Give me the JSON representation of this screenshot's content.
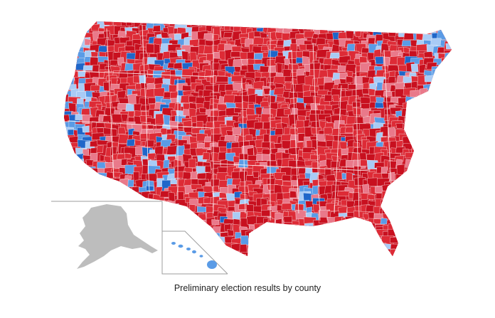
{
  "caption": "Preliminary election results by county",
  "legend_colors": {
    "republican_strong": "#c8101f",
    "republican": "#dd2b36",
    "republican_lean": "#e9798a",
    "democrat_lean": "#a9cbf5",
    "democrat": "#5a9be6",
    "democrat_strong": "#1f66c9",
    "unavailable": "#bdbdbd"
  },
  "insets": [
    "alaska",
    "hawaii"
  ]
}
